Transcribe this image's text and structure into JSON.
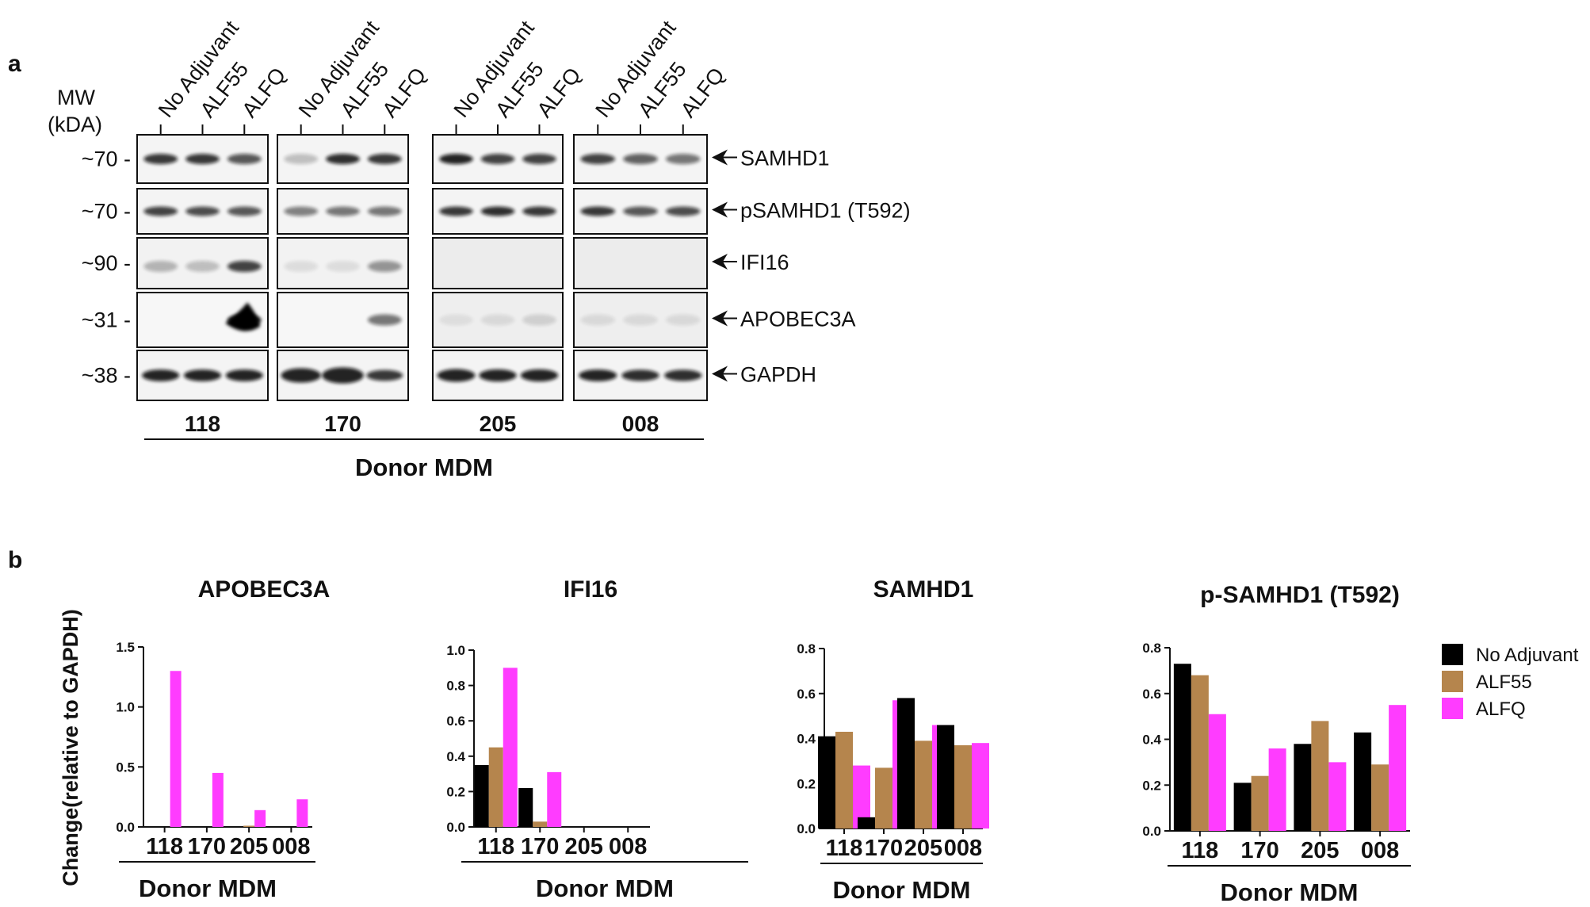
{
  "panel_a": {
    "label": "a",
    "mw_header_line1": "MW",
    "mw_header_line2": "(kDA)",
    "lane_labels": [
      "No Adjuvant",
      "ALF55",
      "ALFQ"
    ],
    "donors": [
      "118",
      "170",
      "205",
      "008"
    ],
    "donor_title": "Donor MDM",
    "rows": [
      {
        "mw": "~70 -",
        "protein": "SAMHD1"
      },
      {
        "mw": "~70 -",
        "protein": "pSAMHD1 (T592)"
      },
      {
        "mw": "~90 -",
        "protein": "IFI16"
      },
      {
        "mw": "~31 -",
        "protein": "APOBEC3A"
      },
      {
        "mw": "~38 -",
        "protein": "GAPDH"
      }
    ]
  },
  "panel_b": {
    "label": "b",
    "ylabel": "Change(relative to GAPDH)",
    "legend": [
      {
        "name": "No Adjuvant",
        "color": "#000000"
      },
      {
        "name": "ALF55",
        "color": "#b5854d"
      },
      {
        "name": "ALFQ",
        "color": "#ff3cff"
      }
    ]
  },
  "chart_data": [
    {
      "type": "bar",
      "title": "APOBEC3A",
      "categories": [
        "118",
        "170",
        "205",
        "008"
      ],
      "xlabel": "Donor MDM",
      "ylabel": "Change(relative to GAPDH)",
      "ylim": [
        0,
        1.5
      ],
      "yticks": [
        "0.0",
        "0.5",
        "1.0",
        "1.5"
      ],
      "series": [
        {
          "name": "No Adjuvant",
          "values": [
            0,
            0,
            0,
            0
          ]
        },
        {
          "name": "ALF55",
          "values": [
            0,
            0,
            0.01,
            0
          ]
        },
        {
          "name": "ALFQ",
          "values": [
            1.3,
            0.45,
            0.14,
            0.23
          ]
        }
      ]
    },
    {
      "type": "bar",
      "title": "IFI16",
      "categories": [
        "118",
        "170",
        "205",
        "008"
      ],
      "xlabel": "Donor MDM",
      "ylim": [
        0,
        1.0
      ],
      "yticks": [
        "0.0",
        "0.2",
        "0.4",
        "0.6",
        "0.8",
        "1.0"
      ],
      "series": [
        {
          "name": "No Adjuvant",
          "values": [
            0.35,
            0.22,
            0,
            0
          ]
        },
        {
          "name": "ALF55",
          "values": [
            0.45,
            0.03,
            0,
            0
          ]
        },
        {
          "name": "ALFQ",
          "values": [
            0.9,
            0.31,
            0,
            0
          ]
        }
      ]
    },
    {
      "type": "bar",
      "title": "SAMHD1",
      "categories": [
        "118",
        "170",
        "205",
        "008"
      ],
      "xlabel": "Donor MDM",
      "ylim": [
        0,
        0.8
      ],
      "yticks": [
        "0.0",
        "0.2",
        "0.4",
        "0.6",
        "0.8"
      ],
      "series": [
        {
          "name": "No Adjuvant",
          "values": [
            0.41,
            0.05,
            0.58,
            0.46
          ]
        },
        {
          "name": "ALF55",
          "values": [
            0.43,
            0.27,
            0.39,
            0.37
          ]
        },
        {
          "name": "ALFQ",
          "values": [
            0.28,
            0.57,
            0.46,
            0.38
          ]
        }
      ]
    },
    {
      "type": "bar",
      "title": "p-SAMHD1 (T592)",
      "categories": [
        "118",
        "170",
        "205",
        "008"
      ],
      "xlabel": "Donor MDM",
      "ylim": [
        0,
        0.8
      ],
      "yticks": [
        "0.0",
        "0.2",
        "0.4",
        "0.6",
        "0.8"
      ],
      "series": [
        {
          "name": "No Adjuvant",
          "values": [
            0.73,
            0.21,
            0.38,
            0.43
          ]
        },
        {
          "name": "ALF55",
          "values": [
            0.68,
            0.24,
            0.48,
            0.29
          ]
        },
        {
          "name": "ALFQ",
          "values": [
            0.51,
            0.36,
            0.3,
            0.55
          ]
        }
      ]
    }
  ]
}
